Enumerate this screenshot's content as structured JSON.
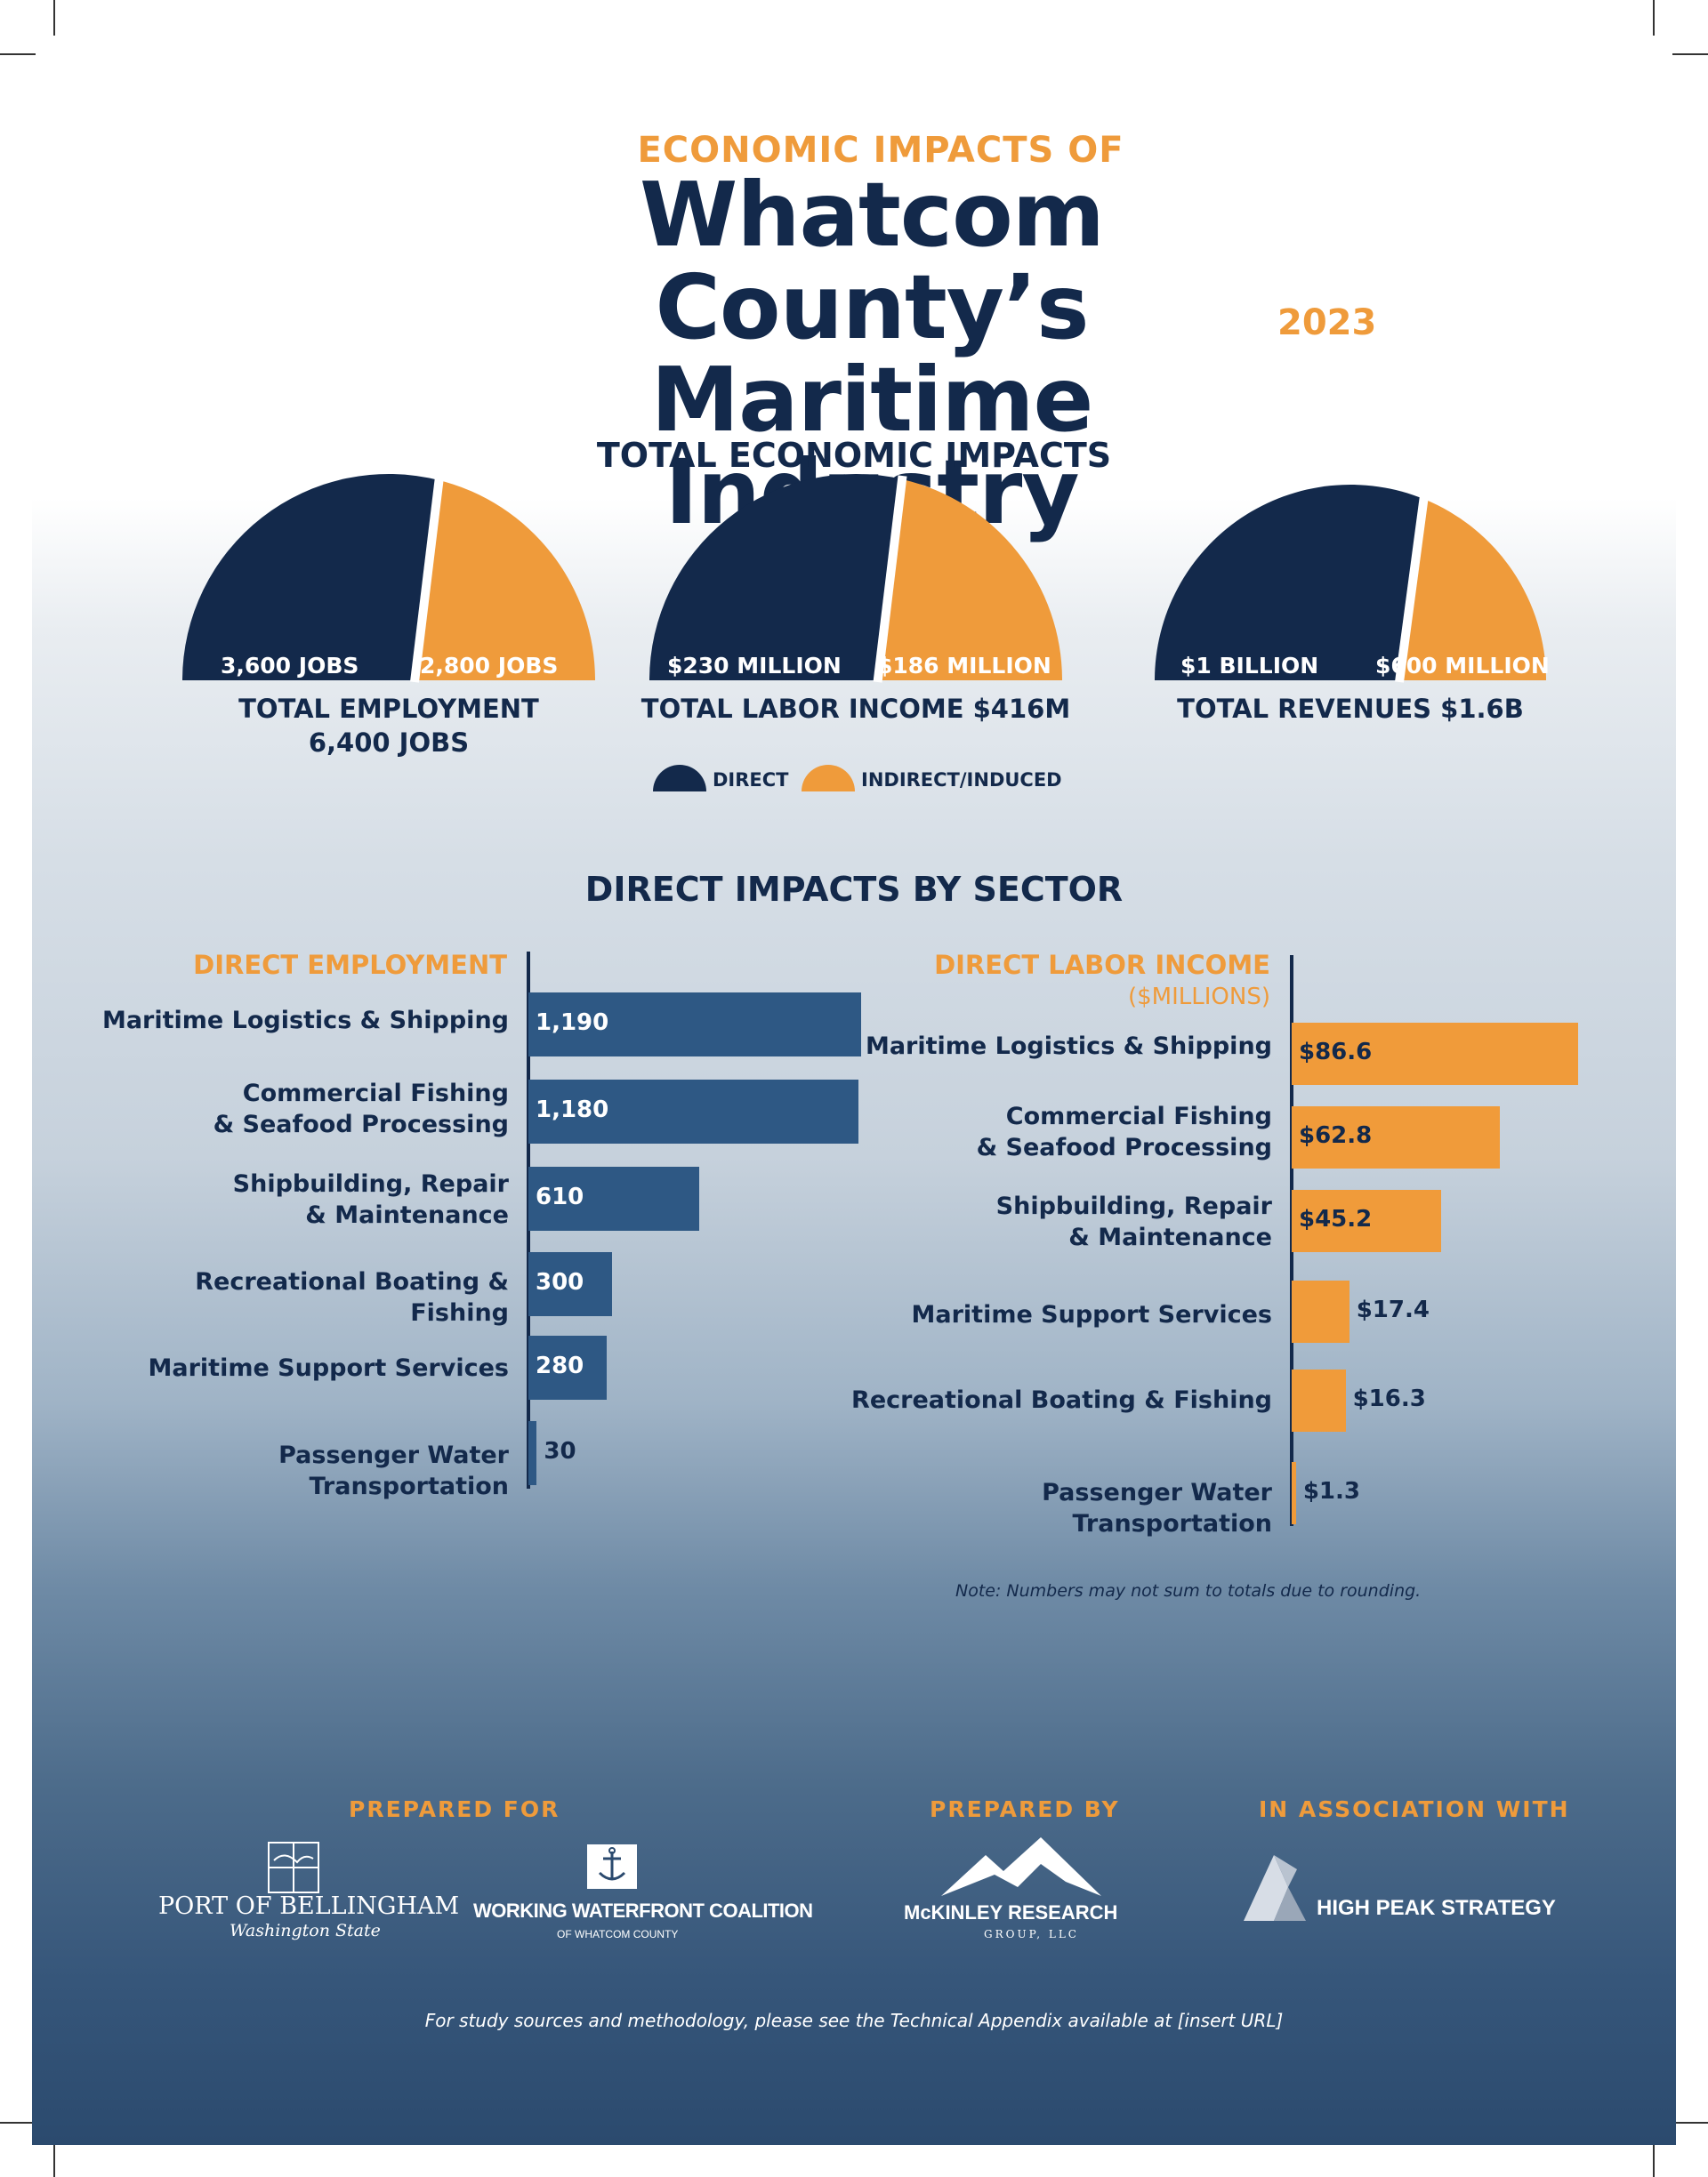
{
  "header": {
    "kicker": "ECONOMIC IMPACTS OF",
    "title_line1": "Whatcom County’s",
    "title_line2": "Maritime Industry",
    "year": "2023"
  },
  "totals": {
    "heading": "TOTAL ECONOMIC IMPACTS",
    "items": [
      {
        "direct_label": "3,600 JOBS",
        "indirect_label": "2,800 JOBS",
        "direct_value": 3600,
        "indirect_value": 2800,
        "caption_line1": "TOTAL EMPLOYMENT",
        "caption_line2": "6,400 JOBS"
      },
      {
        "direct_label": "$230 MILLION",
        "indirect_label": "$186 MILLION",
        "direct_value": 230,
        "indirect_value": 186,
        "caption_line1": "TOTAL LABOR INCOME $416M",
        "caption_line2": ""
      },
      {
        "direct_label": "$1 BILLION",
        "indirect_label": "$600 MILLION",
        "direct_value": 1000,
        "indirect_value": 600,
        "caption_line1": "TOTAL REVENUES $1.6B",
        "caption_line2": ""
      }
    ],
    "legend": {
      "direct": "DIRECT",
      "indirect": "INDIRECT/INDUCED"
    }
  },
  "colors": {
    "direct": "#13294b",
    "indirect": "#ef9b3b",
    "employment_bar": "#2e5884",
    "income_bar": "#f09b3a"
  },
  "sector": {
    "heading": "DIRECT IMPACTS BY SECTOR",
    "note": "Note: Numbers may not sum to totals due to rounding."
  },
  "chart_data": [
    {
      "type": "bar",
      "orientation": "horizontal",
      "title": "DIRECT EMPLOYMENT",
      "subtitle": "",
      "categories": [
        "Maritime Logistics & Shipping",
        "Commercial Fishing\n& Seafood Processing",
        "Shipbuilding, Repair\n& Maintenance",
        "Recreational Boating & Fishing",
        "Maritime Support Services",
        "Passenger Water Transportation"
      ],
      "values": [
        1190,
        1180,
        610,
        300,
        280,
        30
      ],
      "labels": [
        "1,190",
        "1,180",
        "610",
        "300",
        "280",
        "30"
      ],
      "xlim": [
        0,
        1190
      ]
    },
    {
      "type": "bar",
      "orientation": "horizontal",
      "title": "DIRECT LABOR INCOME",
      "subtitle": "($MILLIONS)",
      "categories": [
        "Maritime Logistics & Shipping",
        "Commercial Fishing\n& Seafood Processing",
        "Shipbuilding, Repair\n& Maintenance",
        "Maritime Support Services",
        "Recreational Boating & Fishing",
        "Passenger Water Transportation"
      ],
      "values": [
        86.6,
        62.8,
        45.2,
        17.4,
        16.3,
        1.3
      ],
      "labels": [
        "$86.6",
        "$62.8",
        "$45.2",
        "$17.4",
        "$16.3",
        "$1.3"
      ],
      "xlim": [
        0,
        86.6
      ]
    }
  ],
  "footer": {
    "prepared_for": "PREPARED FOR",
    "prepared_by": "PREPARED BY",
    "association": "IN ASSOCIATION WITH",
    "logos": {
      "port_name": "PORT OF BELLINGHAM",
      "port_sub": "Washington State",
      "wwc_name": "WORKING WATERFRONT COALITION",
      "wwc_sub": "OF WHATCOM COUNTY",
      "mckinley_name": "McKINLEY RESEARCH",
      "mckinley_sub": "GROUP, LLC",
      "highpeak_name": "HIGH PEAK STRATEGY"
    },
    "sources": "For study sources and methodology, please see the Technical Appendix available at [insert URL]"
  }
}
